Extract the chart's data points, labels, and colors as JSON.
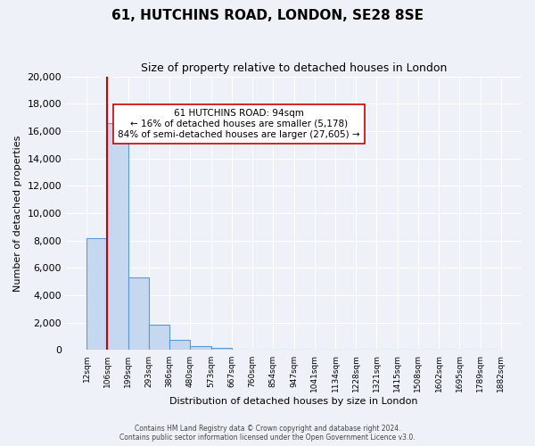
{
  "title": "61, HUTCHINS ROAD, LONDON, SE28 8SE",
  "subtitle": "Size of property relative to detached houses in London",
  "xlabel": "Distribution of detached houses by size in London",
  "ylabel": "Number of detached properties",
  "bin_labels": [
    "12sqm",
    "106sqm",
    "199sqm",
    "293sqm",
    "386sqm",
    "480sqm",
    "573sqm",
    "667sqm",
    "760sqm",
    "854sqm",
    "947sqm",
    "1041sqm",
    "1134sqm",
    "1228sqm",
    "1321sqm",
    "1415sqm",
    "1508sqm",
    "1602sqm",
    "1695sqm",
    "1789sqm",
    "1882sqm"
  ],
  "bar_heights": [
    8150,
    16600,
    5300,
    1850,
    750,
    300,
    150,
    60,
    0,
    0,
    0,
    0,
    0,
    0,
    0,
    0,
    0,
    0,
    0,
    0
  ],
  "ylim": [
    0,
    20000
  ],
  "yticks": [
    0,
    2000,
    4000,
    6000,
    8000,
    10000,
    12000,
    14000,
    16000,
    18000,
    20000
  ],
  "bar_color": "#c5d8f0",
  "bar_edge_color": "#5b9bd5",
  "property_line_x": 1,
  "property_line_color": "#cc0000",
  "annotation_title": "61 HUTCHINS ROAD: 94sqm",
  "annotation_line1": "← 16% of detached houses are smaller (5,178)",
  "annotation_line2": "84% of semi-detached houses are larger (27,605) →",
  "annotation_box_color": "#ffffff",
  "annotation_box_edge": "#cc0000",
  "background_color": "#eef2f8",
  "plot_bg_color": "#eef2f8",
  "footer_line1": "Contains HM Land Registry data © Crown copyright and database right 2024.",
  "footer_line2": "Contains public sector information licensed under the Open Government Licence v3.0."
}
